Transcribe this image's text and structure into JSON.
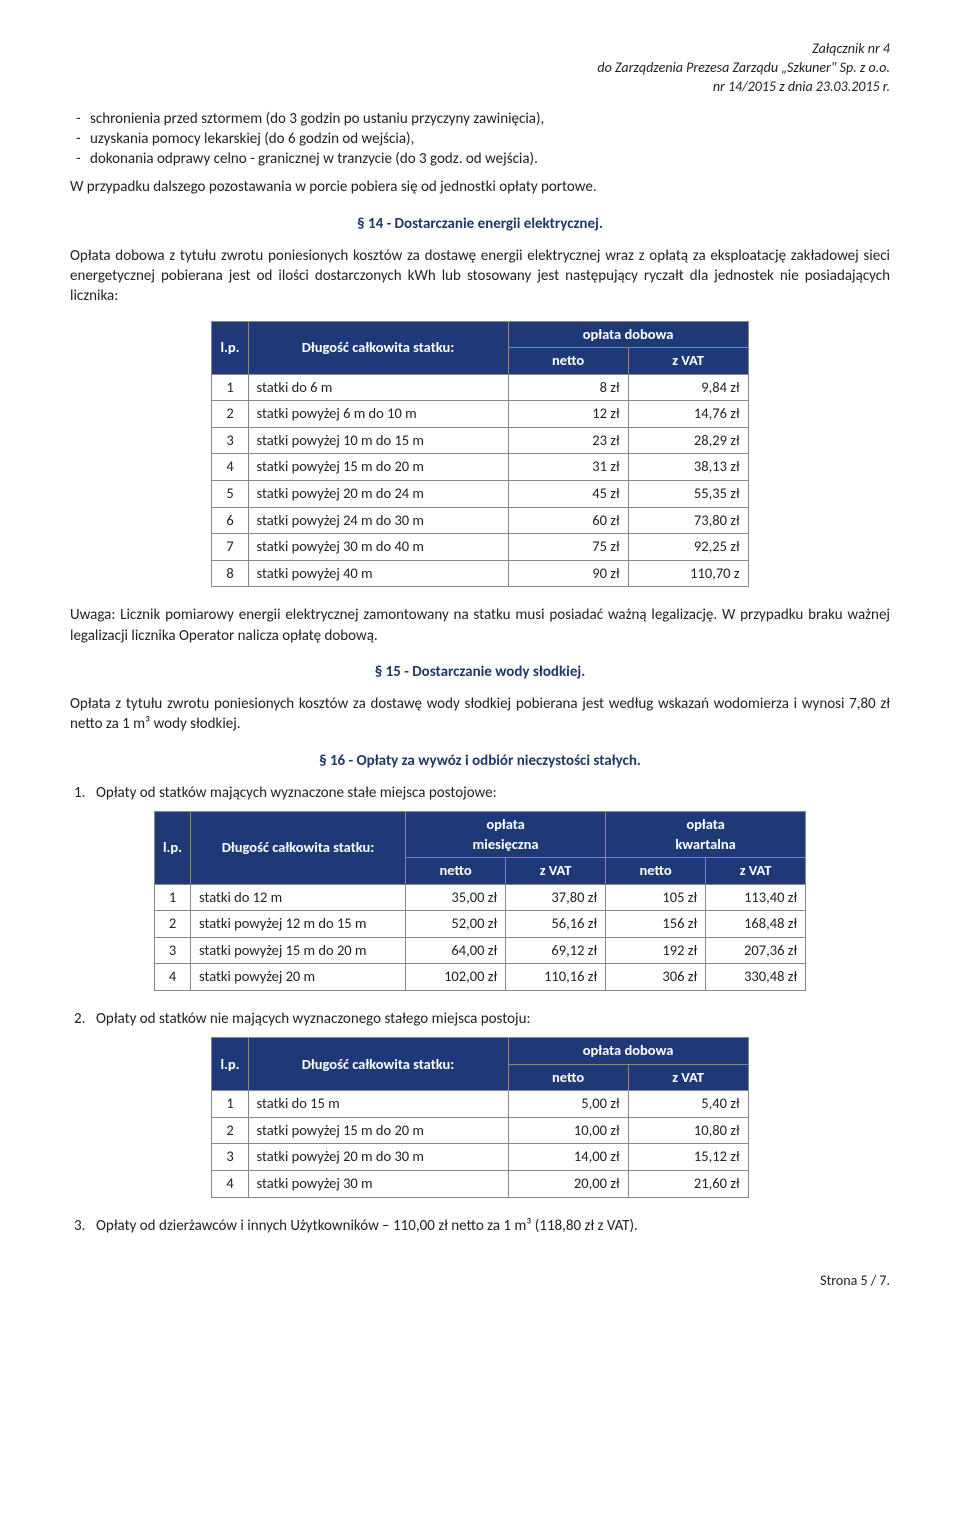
{
  "header": {
    "line1": "Załącznik nr 4",
    "line2": "do Zarządzenia Prezesa Zarządu „Szkuner\" Sp. z o.o.",
    "line3": "nr 14/2015 z dnia 23.03.2015 r."
  },
  "bullet_items": [
    "schronienia przed sztormem (do 3 godzin po ustaniu przyczyny zawinięcia),",
    "uzyskania pomocy lekarskiej (do 6 godzin od wejścia),",
    "dokonania odprawy celno - granicznej w tranzycie (do 3 godz. od wejścia)."
  ],
  "para_after_bullets": "W przypadku dalszego pozostawania w porcie pobiera się od jednostki opłaty portowe.",
  "s14": {
    "title": "§ 14 - Dostarczanie energii elektrycznej.",
    "intro": "Opłata dobowa z tytułu zwrotu poniesionych kosztów za dostawę energii elektrycznej wraz z opłatą za eksploatację zakładowej sieci energetycznej pobierana jest od ilości dostarczonych kWh lub stosowany jest następujący ryczałt dla jednostek nie posiadających licznika:",
    "table": {
      "col_lp": "l.p.",
      "col_desc": "Długość całkowita statku:",
      "col_group": "opłata dobowa",
      "col_netto": "netto",
      "col_vat": "z VAT",
      "rows": [
        {
          "n": "1",
          "d": "statki do 6 m",
          "net": "8 zł",
          "vat": "9,84 zł"
        },
        {
          "n": "2",
          "d": "statki powyżej 6 m do 10 m",
          "net": "12 zł",
          "vat": "14,76 zł"
        },
        {
          "n": "3",
          "d": "statki powyżej 10 m do 15 m",
          "net": "23 zł",
          "vat": "28,29 zł"
        },
        {
          "n": "4",
          "d": "statki powyżej 15 m do 20 m",
          "net": "31 zł",
          "vat": "38,13 zł"
        },
        {
          "n": "5",
          "d": "statki powyżej 20 m do 24 m",
          "net": "45 zł",
          "vat": "55,35 zł"
        },
        {
          "n": "6",
          "d": "statki powyżej 24 m do 30 m",
          "net": "60 zł",
          "vat": "73,80 zł"
        },
        {
          "n": "7",
          "d": "statki powyżej 30 m do 40 m",
          "net": "75 zł",
          "vat": "92,25 zł"
        },
        {
          "n": "8",
          "d": "statki powyżej 40 m",
          "net": "90 zł",
          "vat": "110,70 z"
        }
      ],
      "widths": {
        "lp": 34,
        "desc": 260,
        "net": 120,
        "vat": 120
      }
    },
    "note": "Uwaga: Licznik pomiarowy energii elektrycznej zamontowany na statku musi posiadać ważną legalizację. W przypadku braku ważnej legalizacji licznika Operator nalicza opłatę dobową."
  },
  "s15": {
    "title": "§ 15 - Dostarczanie wody słodkiej.",
    "para": "Opłata z tytułu zwrotu poniesionych kosztów za dostawę wody słodkiej pobierana jest według wskazań wodomierza i wynosi 7,80 zł netto za 1 m³ wody słodkiej."
  },
  "s16": {
    "title": "§ 16 - Opłaty za wywóz i odbiór nieczystości stałych.",
    "item1": "Opłaty od statków mających wyznaczone stałe miejsca postojowe:",
    "table1": {
      "col_lp": "l.p.",
      "col_desc": "Długość całkowita statku:",
      "g1": "opłata miesięczna",
      "g2": "opłata kwartalna",
      "col_netto": "netto",
      "col_vat": "z VAT",
      "rows": [
        {
          "n": "1",
          "d": "statki do 12 m",
          "mn": "35,00 zł",
          "mv": "37,80 zł",
          "kn": "105 zł",
          "kv": "113,40 zł"
        },
        {
          "n": "2",
          "d": "statki powyżej 12 m do 15 m",
          "mn": "52,00 zł",
          "mv": "56,16 zł",
          "kn": "156 zł",
          "kv": "168,48 zł"
        },
        {
          "n": "3",
          "d": "statki powyżej 15 m do 20 m",
          "mn": "64,00 zł",
          "mv": "69,12 zł",
          "kn": "192 zł",
          "kv": "207,36 zł"
        },
        {
          "n": "4",
          "d": "statki powyżej 20 m",
          "mn": "102,00 zł",
          "mv": "110,16 zł",
          "kn": "306 zł",
          "kv": "330,48 zł"
        }
      ],
      "widths": {
        "lp": 34,
        "desc": 215,
        "c": 100
      }
    },
    "item2": "Opłaty od statków nie mających wyznaczonego stałego miejsca postoju:",
    "table2": {
      "col_lp": "l.p.",
      "col_desc": "Długość całkowita statku:",
      "col_group": "opłata dobowa",
      "col_netto": "netto",
      "col_vat": "z VAT",
      "rows": [
        {
          "n": "1",
          "d": "statki do 15 m",
          "net": "5,00 zł",
          "vat": "5,40 zł"
        },
        {
          "n": "2",
          "d": "statki powyżej 15 m do 20 m",
          "net": "10,00 zł",
          "vat": "10,80 zł"
        },
        {
          "n": "3",
          "d": "statki powyżej 20 m do 30 m",
          "net": "14,00 zł",
          "vat": "15,12 zł"
        },
        {
          "n": "4",
          "d": "statki powyżej 30 m",
          "net": "20,00 zł",
          "vat": "21,60 zł"
        }
      ],
      "widths": {
        "lp": 34,
        "desc": 260,
        "net": 120,
        "vat": 120
      }
    },
    "item3": "Opłaty od dzierżawców i innych Użytkowników – 110,00 zł netto za 1 m³  (118,80 zł z VAT)."
  },
  "footer": "Strona 5 / 7.",
  "style": {
    "header_bg": "#1f3878",
    "header_fg": "#ffffff",
    "section_color": "#1f3864",
    "border_color": "#888888"
  }
}
